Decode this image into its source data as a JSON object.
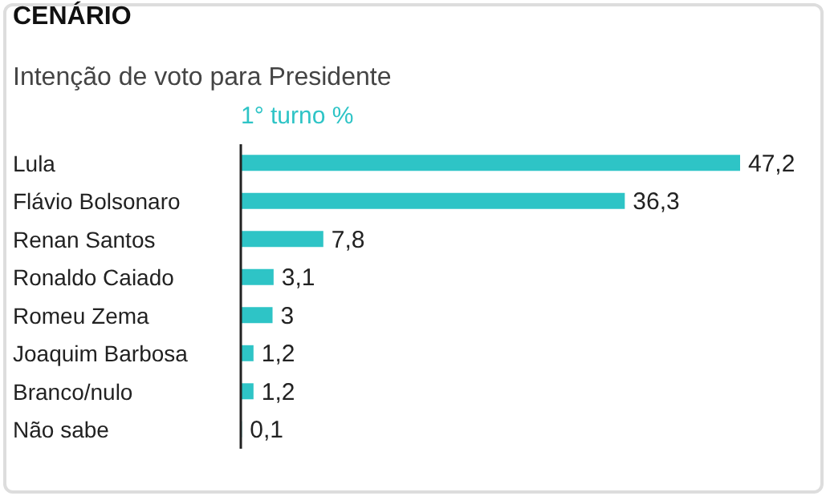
{
  "chart_data": {
    "type": "bar",
    "orientation": "horizontal",
    "title": "CENÁRIO",
    "subtitle": "Intenção de voto para Presidente",
    "categories": [
      "Lula",
      "Flávio Bolsonaro",
      "Renan Santos",
      "Ronaldo Caiado",
      "Romeu Zema",
      "Joaquim Barbosa",
      "Branco/nulo",
      "Não sabe"
    ],
    "series": [
      {
        "name": "1° turno %",
        "color": "#2ec4c6",
        "values": [
          47.2,
          36.3,
          7.8,
          3.1,
          3,
          1.2,
          1.2,
          0.1
        ],
        "value_labels": [
          "47,2",
          "36,3",
          "7,8",
          "3,1",
          "3",
          "1,2",
          "1,2",
          "0,1"
        ]
      }
    ],
    "legend": "top",
    "grid": false
  }
}
